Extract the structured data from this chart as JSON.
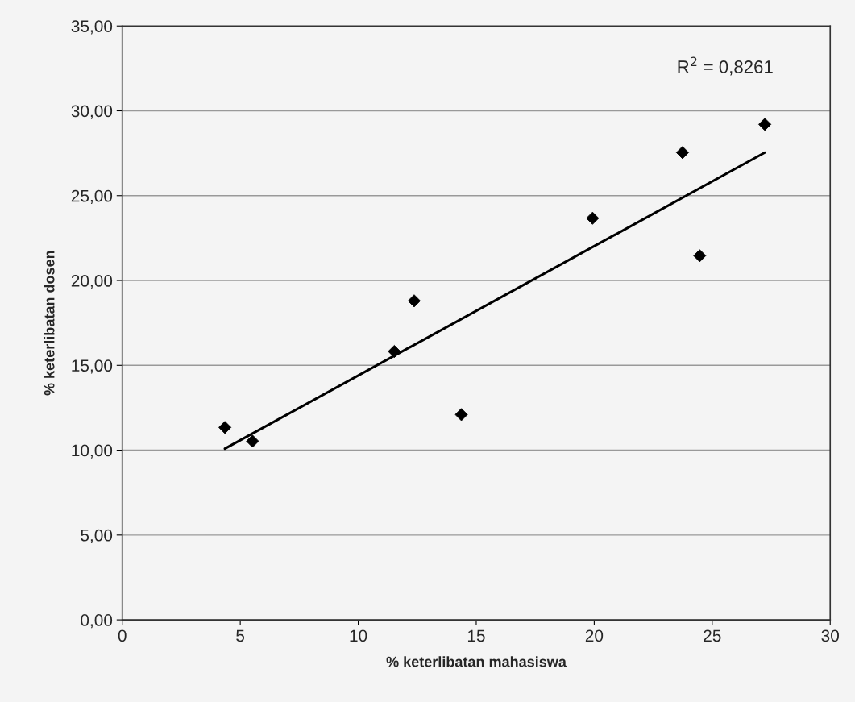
{
  "chart_data": {
    "type": "scatter",
    "xlabel": "% keterlibatan mahasiswa",
    "ylabel": "% keterlibatan dosen",
    "series": [
      {
        "color": "#000000",
        "marker": "diamond",
        "x": [
          4.35,
          5.52,
          11.53,
          12.37,
          14.37,
          19.93,
          23.74,
          24.47,
          27.23
        ],
        "values": [
          11.34,
          10.53,
          15.82,
          18.8,
          12.1,
          23.67,
          27.54,
          21.46,
          29.2
        ]
      },
      {
        "type": "line",
        "color": "#000000",
        "marker": "none",
        "line_style": "solid",
        "x": [
          4.35,
          27.23
        ],
        "values": [
          10.09,
          27.54
        ]
      }
    ],
    "xlim": [
      0,
      30
    ],
    "xticks": [
      0,
      5,
      10,
      15,
      20,
      25,
      30
    ],
    "ylim": [
      0,
      35
    ],
    "yticks": [
      {
        "value": 0,
        "label": "0,00"
      },
      {
        "value": 5,
        "label": "5,00"
      },
      {
        "value": 10,
        "label": "10,00"
      },
      {
        "value": 15,
        "label": "15,00"
      },
      {
        "value": 20,
        "label": "20,00"
      },
      {
        "value": 25,
        "label": "25,00"
      },
      {
        "value": 30,
        "label": "30,00"
      },
      {
        "value": 35,
        "label": "35,00"
      }
    ],
    "grid": "y",
    "legend": false,
    "annotations": [
      "R$^{2}$ = 0,8261"
    ]
  }
}
